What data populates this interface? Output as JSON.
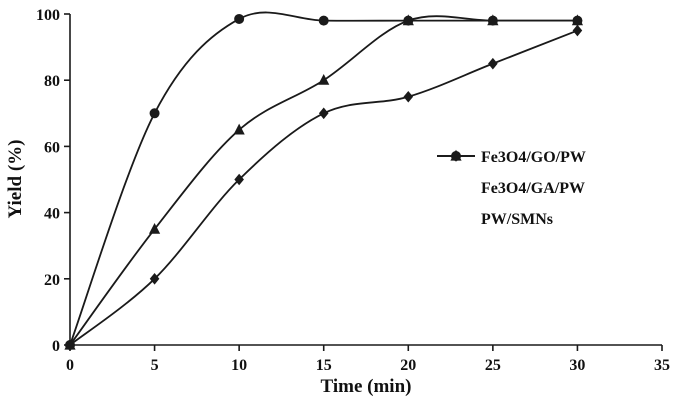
{
  "chart_data": {
    "type": "line",
    "x": [
      0,
      5,
      10,
      15,
      20,
      25,
      30
    ],
    "series": [
      {
        "name": "Fe3O4/GO/PW",
        "marker": "circle",
        "values": [
          0,
          70,
          98.5,
          98,
          98,
          98,
          98
        ]
      },
      {
        "name": "Fe3O4/GA/PW",
        "marker": "triangle",
        "values": [
          0,
          35,
          65,
          80,
          98,
          98,
          98
        ]
      },
      {
        "name": "PW/SMNs",
        "marker": "diamond",
        "values": [
          0,
          20,
          50,
          70,
          75,
          85,
          95
        ]
      }
    ],
    "xlabel": "Time (min)",
    "ylabel": "Yield (%)",
    "xlim": [
      0,
      35
    ],
    "ylim": [
      0,
      100
    ],
    "xticks": [
      0,
      5,
      10,
      15,
      20,
      25,
      30,
      35
    ],
    "yticks": [
      0,
      20,
      40,
      60,
      80,
      100
    ],
    "line_color": "#1a1a1a",
    "grid": false,
    "legend_position": "middle-right"
  }
}
